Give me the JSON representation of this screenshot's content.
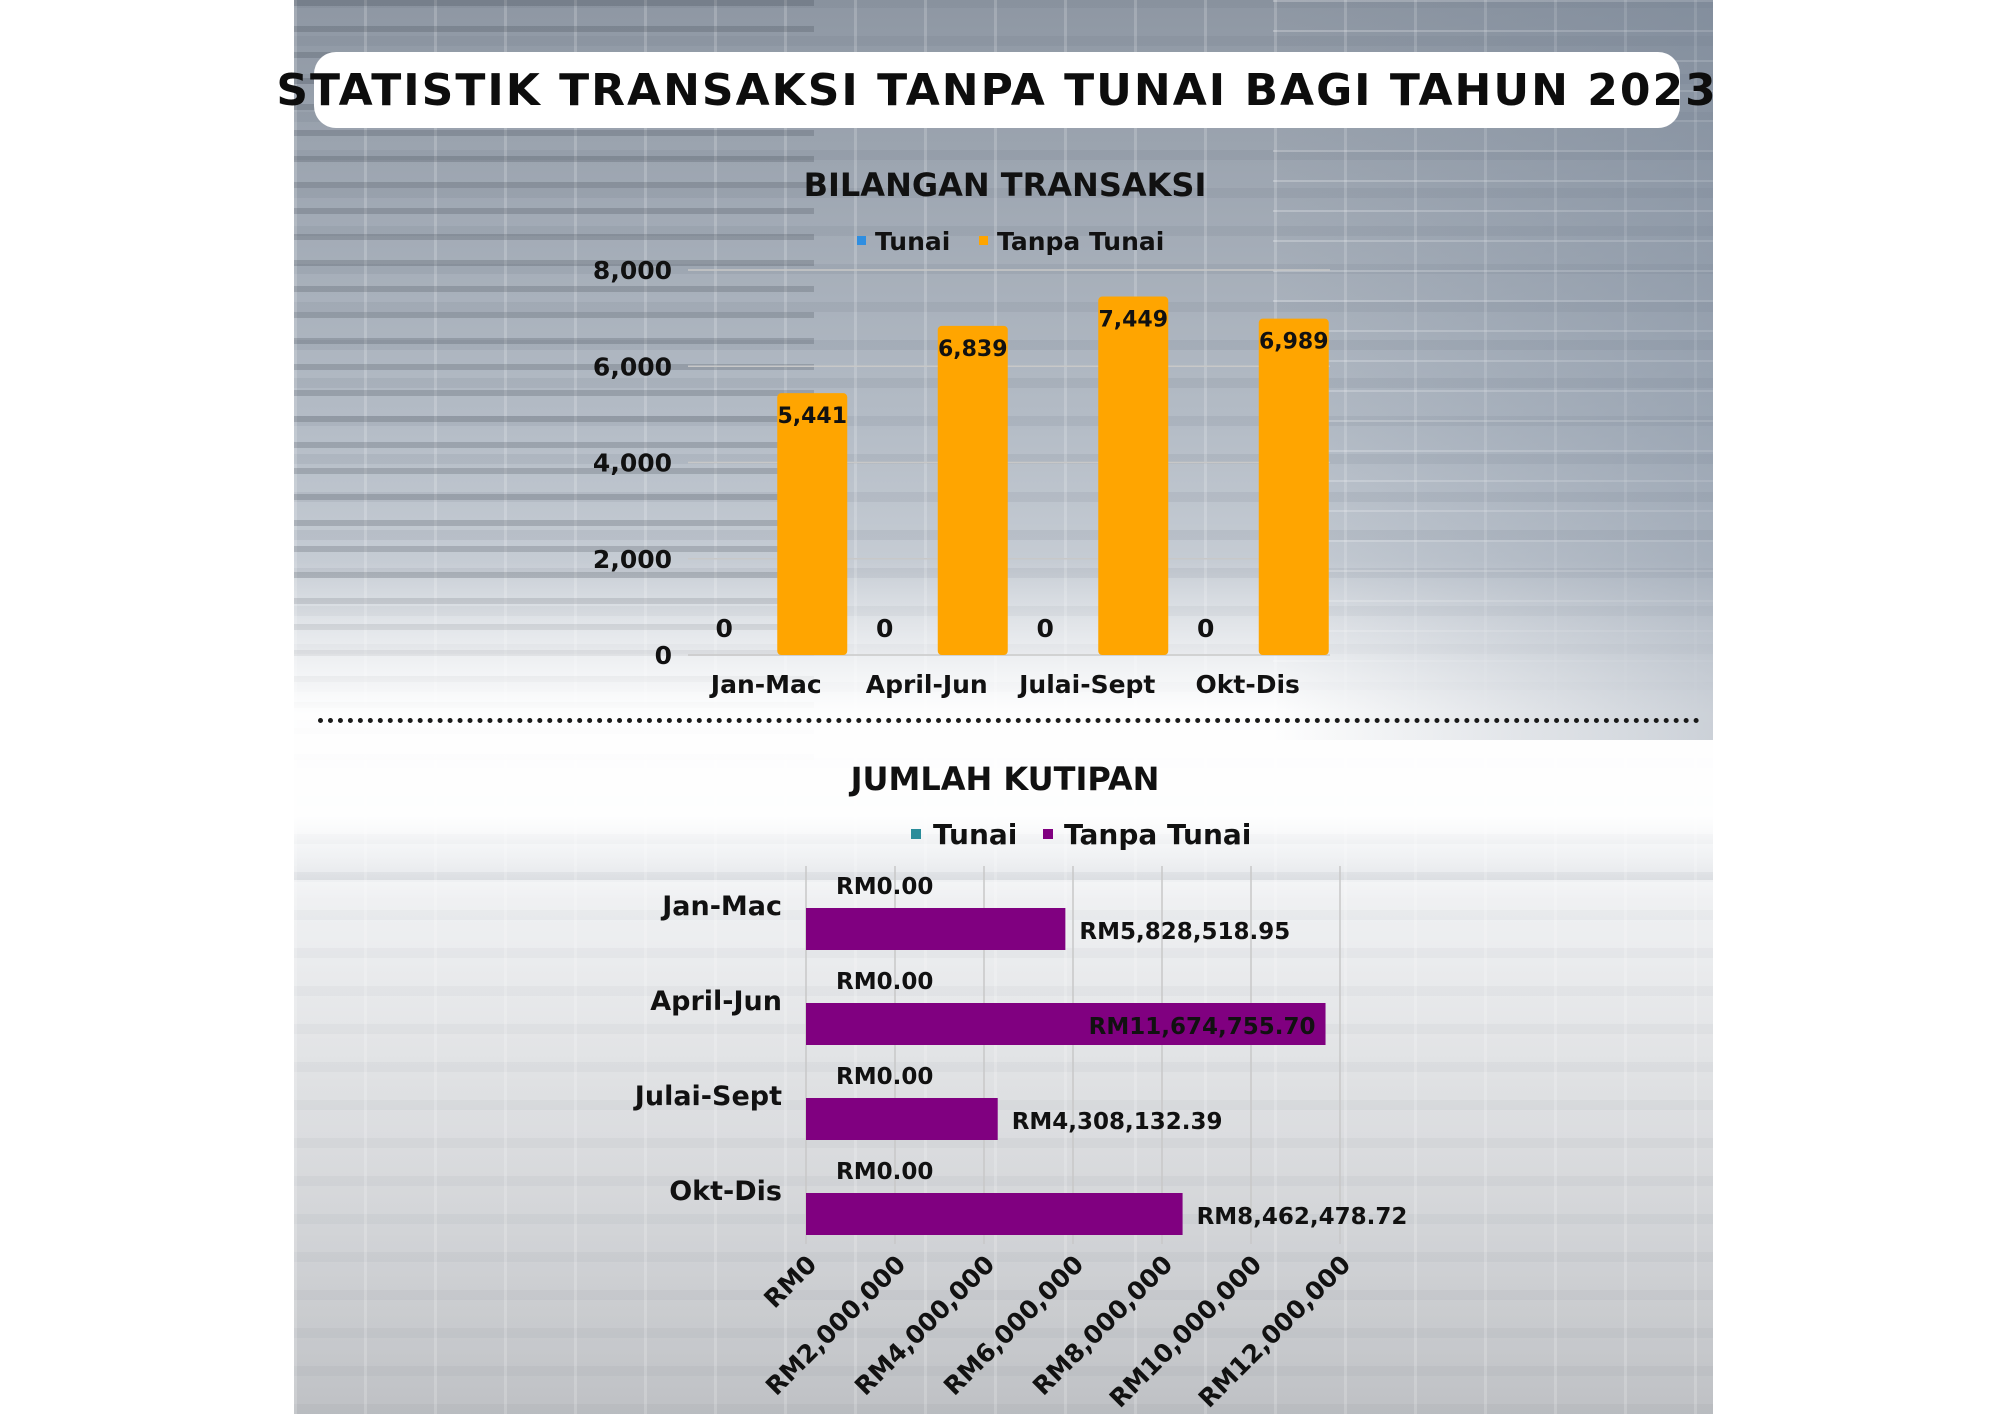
{
  "title": "STATISTIK TRANSAKSI TANPA TUNAI BAGI TAHUN 2023",
  "colors": {
    "tunai_top": "#2f8ee0",
    "tanpa_top": "#ffa500",
    "tunai_bottom": "#2a8c9a",
    "tanpa_bottom": "#800080"
  },
  "chart_data": [
    {
      "type": "bar",
      "title": "BILANGAN TRANSAKSI",
      "categories": [
        "Jan-Mac",
        "April-Jun",
        "Julai-Sept",
        "Okt-Dis"
      ],
      "series": [
        {
          "name": "Tunai",
          "values": [
            0,
            0,
            0,
            0
          ],
          "labels": [
            "0",
            "0",
            "0",
            "0"
          ]
        },
        {
          "name": "Tanpa Tunai",
          "values": [
            5441,
            6839,
            7449,
            6989
          ],
          "labels": [
            "5,441",
            "6,839",
            "7,449",
            "6,989"
          ]
        }
      ],
      "ylim": [
        0,
        8000
      ],
      "yticks": [
        0,
        2000,
        4000,
        6000,
        8000
      ],
      "ytick_labels": [
        "0",
        "2,000",
        "4,000",
        "6,000",
        "8,000"
      ],
      "grid": true,
      "legend": "top"
    },
    {
      "type": "bar",
      "orientation": "horizontal",
      "title": "JUMLAH KUTIPAN",
      "categories": [
        "Jan-Mac",
        "April-Jun",
        "Julai-Sept",
        "Okt-Dis"
      ],
      "series": [
        {
          "name": "Tunai",
          "values": [
            0,
            0,
            0,
            0
          ],
          "labels": [
            "RM0.00",
            "RM0.00",
            "RM0.00",
            "RM0.00"
          ]
        },
        {
          "name": "Tanpa Tunai",
          "values": [
            5828518.95,
            11674755.7,
            4308132.39,
            8462478.72
          ],
          "labels": [
            "RM5,828,518.95",
            "RM11,674,755.70",
            "RM4,308,132.39",
            "RM8,462,478.72"
          ]
        }
      ],
      "xlim": [
        0,
        12000000
      ],
      "xticks": [
        0,
        2000000,
        4000000,
        6000000,
        8000000,
        10000000,
        12000000
      ],
      "xtick_labels": [
        "RM0",
        "RM2,000,000",
        "RM4,000,000",
        "RM6,000,000",
        "RM8,000,000",
        "RM10,000,000",
        "RM12,000,000"
      ],
      "grid": true,
      "legend": "top"
    }
  ]
}
